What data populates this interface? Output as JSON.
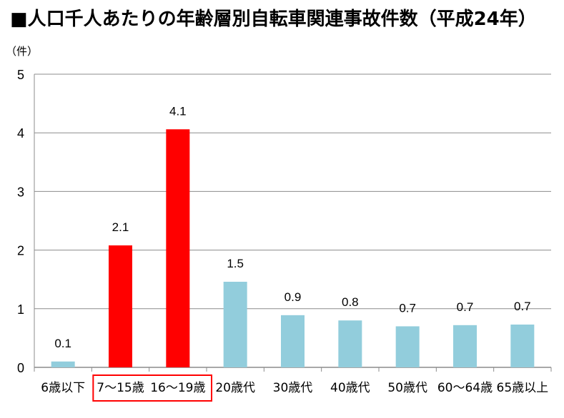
{
  "title": "■人口千人あたりの年齢層別自転車関連事故件数（平成24年）",
  "unit_label": "（件）",
  "colors": {
    "highlight": "#ff0000",
    "normal": "#92cddc",
    "grid": "#8c8c8c",
    "highlight_box": "#ff0000"
  },
  "chart_data": {
    "type": "bar",
    "title": "■人口千人あたりの年齢層別自転車関連事故件数（平成24年）",
    "ylabel": "（件）",
    "xlabel": "",
    "ylim": [
      0,
      5
    ],
    "yticks": [
      0,
      1,
      2,
      3,
      4,
      5
    ],
    "grid": true,
    "categories": [
      "6歳以下",
      "7～15歳",
      "16～19歳",
      "20歳代",
      "30歳代",
      "40歳代",
      "50歳代",
      "60～64歳",
      "65歳以上"
    ],
    "values": [
      0.1,
      2.08,
      4.06,
      1.46,
      0.89,
      0.8,
      0.7,
      0.72,
      0.73
    ],
    "data_labels": [
      "0.1",
      "2.1",
      "4.1",
      "1.5",
      "0.9",
      "0.8",
      "0.7",
      "0.7",
      "0.7"
    ],
    "highlighted": [
      false,
      true,
      true,
      false,
      false,
      false,
      false,
      false,
      false
    ]
  }
}
